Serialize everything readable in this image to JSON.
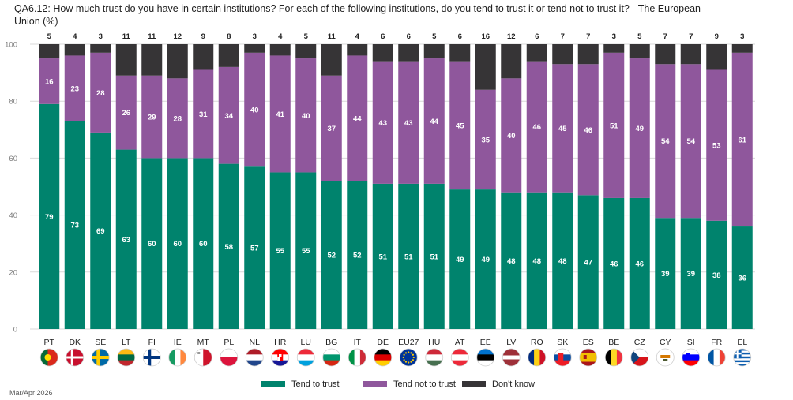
{
  "title": "QA6.12: How much trust do you have in certain institutions? For each of the following institutions, do you tend to trust it or tend not to trust it? - The European Union (%)",
  "footer": "Mar/Apr 2026",
  "colors": {
    "trust": "#00836D",
    "not_trust": "#8F579C",
    "dont_know": "#363436",
    "grid": "#d9d9d9",
    "axis_text": "#7a7a7a"
  },
  "chart_data": {
    "type": "bar",
    "stacked": true,
    "title": "QA6.12: How much trust do you have in certain institutions? For each of the following institutions, do you tend to trust it or tend not to trust it? - The European Union (%)",
    "xlabel": "",
    "ylabel": "",
    "ylim": [
      0,
      100
    ],
    "yticks": [
      0,
      20,
      40,
      60,
      80,
      100
    ],
    "grid": true,
    "legend_position": "bottom",
    "categories": [
      "PT",
      "DK",
      "SE",
      "LT",
      "FI",
      "IE",
      "MT",
      "PL",
      "NL",
      "HR",
      "LU",
      "BG",
      "IT",
      "DE",
      "EU27",
      "HU",
      "AT",
      "EE",
      "LV",
      "RO",
      "SK",
      "ES",
      "BE",
      "CZ",
      "CY",
      "SI",
      "FR",
      "EL"
    ],
    "series": [
      {
        "name": "Tend to trust",
        "color": "#00836D",
        "values": [
          79,
          73,
          69,
          63,
          60,
          60,
          60,
          58,
          57,
          55,
          55,
          52,
          52,
          51,
          51,
          51,
          49,
          49,
          48,
          48,
          48,
          47,
          46,
          46,
          39,
          39,
          38,
          36
        ]
      },
      {
        "name": "Tend not to trust",
        "color": "#8F579C",
        "values": [
          16,
          23,
          28,
          26,
          29,
          28,
          31,
          34,
          40,
          41,
          40,
          37,
          44,
          43,
          43,
          44,
          45,
          35,
          40,
          46,
          45,
          46,
          51,
          49,
          54,
          54,
          53,
          61
        ]
      },
      {
        "name": "Don't know",
        "color": "#363436",
        "values": [
          5,
          4,
          3,
          11,
          11,
          12,
          9,
          8,
          3,
          4,
          5,
          11,
          4,
          6,
          6,
          5,
          6,
          16,
          12,
          6,
          7,
          7,
          3,
          5,
          7,
          7,
          9,
          3
        ]
      }
    ]
  },
  "flags": [
    "portugal-flag-icon",
    "denmark-flag-icon",
    "sweden-flag-icon",
    "lithuania-flag-icon",
    "finland-flag-icon",
    "ireland-flag-icon",
    "malta-flag-icon",
    "poland-flag-icon",
    "netherlands-flag-icon",
    "croatia-flag-icon",
    "luxembourg-flag-icon",
    "bulgaria-flag-icon",
    "italy-flag-icon",
    "germany-flag-icon",
    "eu-flag-icon",
    "hungary-flag-icon",
    "austria-flag-icon",
    "estonia-flag-icon",
    "latvia-flag-icon",
    "romania-flag-icon",
    "slovakia-flag-icon",
    "spain-flag-icon",
    "belgium-flag-icon",
    "czechia-flag-icon",
    "cyprus-flag-icon",
    "slovenia-flag-icon",
    "france-flag-icon",
    "greece-flag-icon"
  ]
}
